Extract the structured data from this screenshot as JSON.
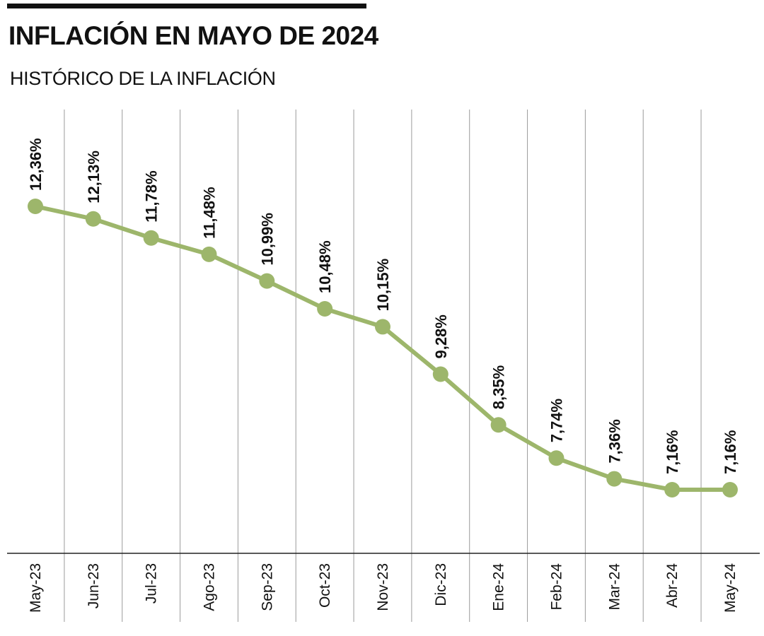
{
  "header": {
    "title": "INFLACIÓN EN MAYO DE 2024",
    "subtitle": "HISTÓRICO DE LA INFLACIÓN"
  },
  "colors": {
    "series": "#9db66b",
    "grid": "#9a9a9a",
    "text": "#111111"
  },
  "chart_data": {
    "type": "line",
    "title": "INFLACIÓN EN MAYO DE 2024",
    "subtitle": "HISTÓRICO DE LA INFLACIÓN",
    "categories": [
      "May-23",
      "Jun-23",
      "Jul-23",
      "Ago-23",
      "Sep-23",
      "Oct-23",
      "Nov-23",
      "Dic-23",
      "Ene-24",
      "Feb-24",
      "Mar-24",
      "Abr-24",
      "May-24"
    ],
    "values": [
      12.36,
      12.13,
      11.78,
      11.48,
      10.99,
      10.48,
      10.15,
      9.28,
      8.35,
      7.74,
      7.36,
      7.16,
      7.16
    ],
    "data_labels": [
      "12,36%",
      "12,13%",
      "11,78%",
      "11,48%",
      "10,99%",
      "10,48%",
      "10,15%",
      "9,28%",
      "8,35%",
      "7,74%",
      "7,36%",
      "7,16%",
      "7,16%"
    ],
    "grid": "vertical",
    "legend": "none"
  }
}
